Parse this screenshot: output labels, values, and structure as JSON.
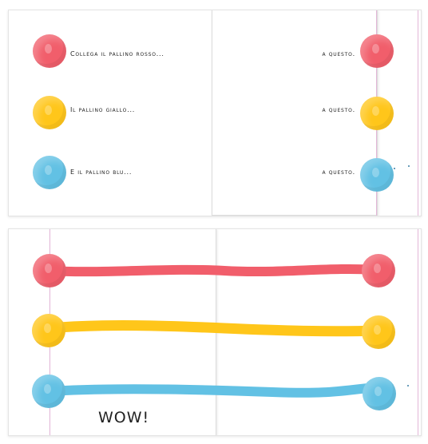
{
  "spread_top": {
    "left_page": {
      "lines": [
        "Collega il pallino rosso...",
        "Il pallino giallo...",
        "E il pallino blu..."
      ]
    },
    "right_page": {
      "lines": [
        "a questo.",
        "a questo.",
        "a questo."
      ]
    }
  },
  "spread_bottom": {
    "exclamation": "WOW!"
  },
  "colors": {
    "red": "#f15e6b",
    "yellow": "#ffc61a",
    "blue": "#62c1e4",
    "page_fold": "#e3b6d8"
  }
}
